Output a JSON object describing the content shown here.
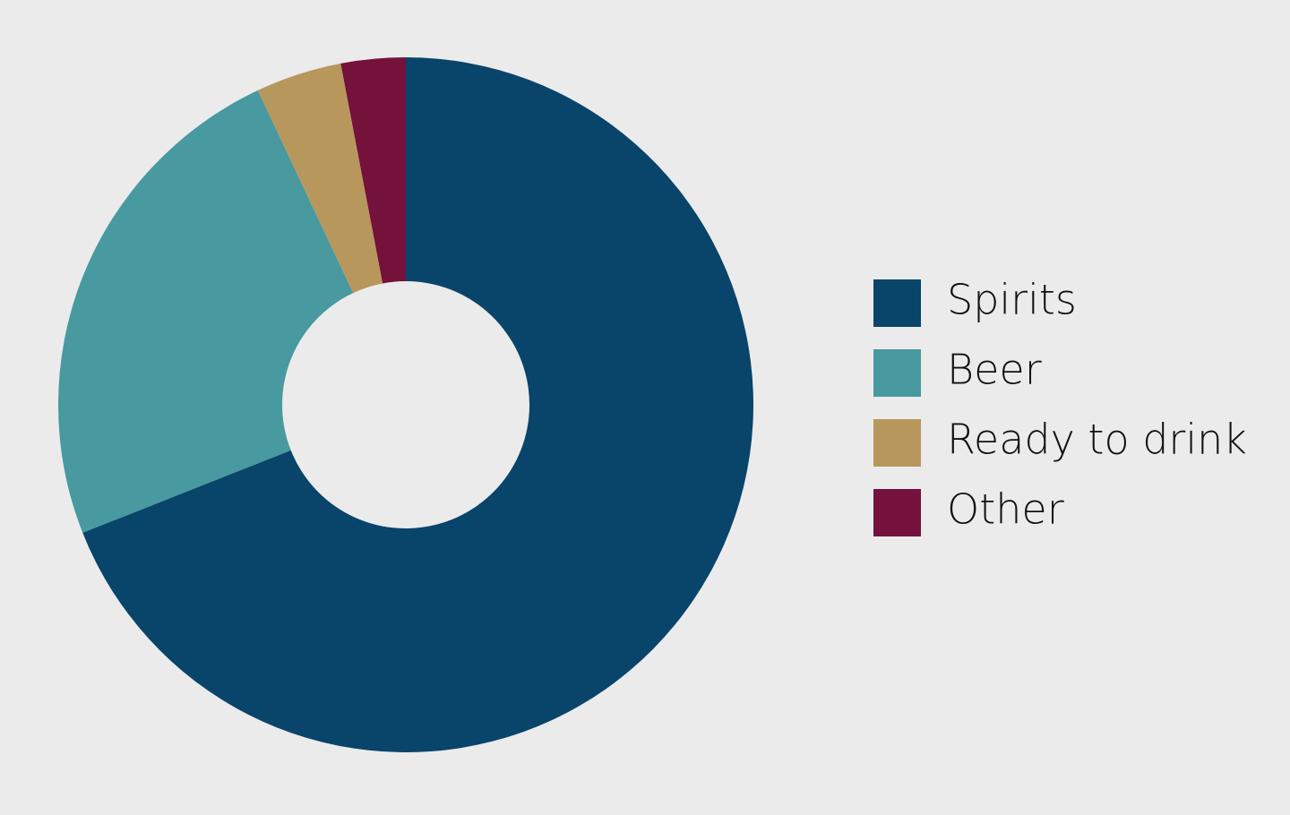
{
  "chart_data": {
    "type": "donut",
    "categories": [
      "Spirits",
      "Beer",
      "Ready to drink",
      "Other"
    ],
    "values": [
      69,
      24,
      4,
      3
    ],
    "colors": [
      "#09446a",
      "#4899a0",
      "#b8975c",
      "#74123c"
    ],
    "legend": "right"
  }
}
